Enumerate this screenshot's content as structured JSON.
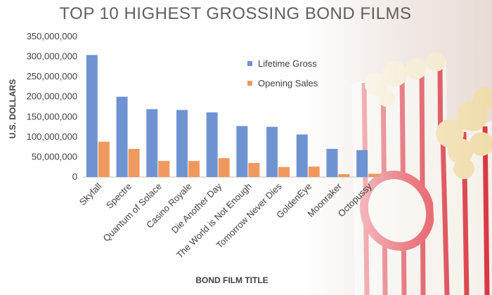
{
  "chart_data": {
    "type": "bar",
    "title": "TOP 10 HIGHEST GROSSING BOND FILMS",
    "xlabel": "BOND FILM TITLE",
    "ylabel": "U.S. DOLLARS",
    "ylim": [
      0,
      350000000
    ],
    "yticks": [
      "0",
      "50,000,000",
      "100,000,000",
      "150,000,000",
      "200,000,000",
      "250,000,000",
      "300,000,000",
      "350,000,000"
    ],
    "ytick_values": [
      0,
      50000000,
      100000000,
      150000000,
      200000000,
      250000000,
      300000000,
      350000000
    ],
    "grid": false,
    "legend_position": "top-right",
    "categories": [
      "Skyfall",
      "Spectre",
      "Quantum of Solace",
      "Casino Royale",
      "Die Another Day",
      "The World is Not Enough",
      "Tomorrow Never Dies",
      "GoldenEye",
      "Moonraker",
      "Octopussy"
    ],
    "series": [
      {
        "name": "Lifetime Gross",
        "color": "#6f93d1",
        "values": [
          304000000,
          200000000,
          169000000,
          167000000,
          161000000,
          127000000,
          125000000,
          106000000,
          70000000,
          67000000
        ]
      },
      {
        "name": "Opening Sales",
        "color": "#f0995f",
        "values": [
          88000000,
          70000000,
          40000000,
          40000000,
          47000000,
          35000000,
          25000000,
          26000000,
          7000000,
          8000000
        ]
      }
    ]
  }
}
